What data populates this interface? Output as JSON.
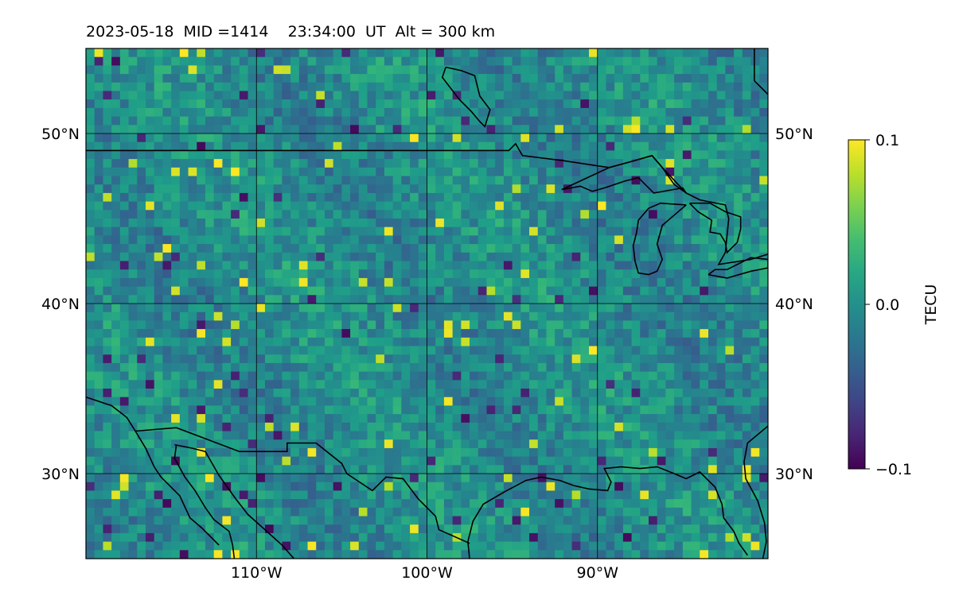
{
  "title": "2023-05-18  MID =1414    23:34:00  UT  Alt = 300 km",
  "map": {
    "projection": "equirectangular",
    "lon_range": [
      -120,
      -80
    ],
    "lat_range": [
      25,
      55
    ],
    "cell_size_deg": 0.5,
    "gridlines": true,
    "lon_ticks": [
      {
        "value": -110,
        "label": "110°W"
      },
      {
        "value": -100,
        "label": "100°W"
      },
      {
        "value": -90,
        "label": "90°W"
      }
    ],
    "lat_ticks": [
      {
        "value": 50,
        "label": "50°N"
      },
      {
        "value": 40,
        "label": "40°N"
      },
      {
        "value": 30,
        "label": "30°N"
      }
    ],
    "coastline_color": "#000000",
    "colormap": "viridis"
  },
  "colorbar": {
    "label": "TECU",
    "min": -0.1,
    "max": 0.1,
    "ticks": [
      {
        "value": 0.1,
        "label": "0.1"
      },
      {
        "value": 0.0,
        "label": "0.0"
      },
      {
        "value": -0.1,
        "label": "−0.1"
      }
    ]
  },
  "boundaries": [
    {
      "name": "us-canada-border",
      "points": [
        [
          -120,
          49
        ],
        [
          -95.2,
          49
        ],
        [
          -94.8,
          49.4
        ],
        [
          -94.4,
          48.7
        ],
        [
          -92,
          48.4
        ],
        [
          -90,
          48.1
        ],
        [
          -89.3,
          48.0
        ],
        [
          -88.2,
          48.3
        ],
        [
          -86.8,
          48.7
        ],
        [
          -86.2,
          48.0
        ],
        [
          -85.5,
          47.0
        ],
        [
          -84.8,
          46.5
        ],
        [
          -84,
          46.1
        ],
        [
          -82.5,
          45.8
        ],
        [
          -82.3,
          45.0
        ],
        [
          -82.5,
          43.0
        ],
        [
          -82.9,
          42.3
        ],
        [
          -81,
          42.6
        ],
        [
          -80,
          42.9
        ]
      ]
    },
    {
      "name": "us-mexico-border",
      "points": [
        [
          -117.1,
          32.5
        ],
        [
          -114.7,
          32.7
        ],
        [
          -111,
          31.3
        ],
        [
          -108.2,
          31.3
        ],
        [
          -108.2,
          31.8
        ],
        [
          -106.5,
          31.8
        ],
        [
          -105,
          30.6
        ],
        [
          -104.7,
          30
        ],
        [
          -103.2,
          29
        ],
        [
          -102.4,
          29.8
        ],
        [
          -101.4,
          29.7
        ],
        [
          -100.5,
          28.5
        ],
        [
          -99.5,
          27.5
        ],
        [
          -99.3,
          26.7
        ],
        [
          -97.5,
          25.9
        ]
      ]
    },
    {
      "name": "baja-pacific-coast",
      "points": [
        [
          -120,
          34.5
        ],
        [
          -118.5,
          34
        ],
        [
          -117.6,
          33.3
        ],
        [
          -117.1,
          32.5
        ],
        [
          -116.5,
          31.5
        ],
        [
          -116,
          30.4
        ],
        [
          -115.6,
          29.8
        ],
        [
          -114.5,
          28.7
        ],
        [
          -113.9,
          27.4
        ],
        [
          -113.2,
          26.8
        ],
        [
          -112.2,
          25.8
        ]
      ]
    },
    {
      "name": "baja-gulf-coast",
      "points": [
        [
          -114.7,
          31.7
        ],
        [
          -114.8,
          30.9
        ],
        [
          -114.2,
          29.8
        ],
        [
          -113.6,
          29.0
        ],
        [
          -113.0,
          28.0
        ],
        [
          -112.5,
          27.3
        ],
        [
          -111.6,
          26.6
        ],
        [
          -111.4,
          25.8
        ],
        [
          -111.3,
          25.0
        ]
      ]
    },
    {
      "name": "mainland-mexico-west-coast",
      "points": [
        [
          -114.8,
          31.7
        ],
        [
          -113.8,
          31.5
        ],
        [
          -113,
          31.3
        ],
        [
          -112.2,
          29.9
        ],
        [
          -111.2,
          28.5
        ],
        [
          -110.5,
          27.6
        ],
        [
          -109.5,
          26.7
        ],
        [
          -108.5,
          25.8
        ],
        [
          -107.8,
          25.0
        ]
      ]
    },
    {
      "name": "gulf-coast",
      "points": [
        [
          -97.5,
          25.0
        ],
        [
          -97.6,
          26.0
        ],
        [
          -97.3,
          27.2
        ],
        [
          -96.7,
          28.2
        ],
        [
          -95.5,
          28.9
        ],
        [
          -94.2,
          29.6
        ],
        [
          -93.3,
          29.8
        ],
        [
          -92.2,
          29.6
        ],
        [
          -91.4,
          29.3
        ],
        [
          -90.5,
          29.1
        ],
        [
          -89.4,
          29.0
        ],
        [
          -89.2,
          29.5
        ],
        [
          -89.6,
          30.3
        ],
        [
          -88.6,
          30.4
        ],
        [
          -87.5,
          30.3
        ],
        [
          -86.5,
          30.4
        ],
        [
          -85.5,
          30.0
        ],
        [
          -84.8,
          29.7
        ],
        [
          -84,
          30.1
        ],
        [
          -83.1,
          29.2
        ],
        [
          -82.7,
          28.2
        ],
        [
          -82.6,
          27.4
        ],
        [
          -82,
          26.6
        ],
        [
          -81.7,
          25.9
        ],
        [
          -81.2,
          25.2
        ]
      ]
    },
    {
      "name": "atlantic-coast",
      "points": [
        [
          -80,
          32.8
        ],
        [
          -81.2,
          31.8
        ],
        [
          -81.4,
          30.7
        ],
        [
          -81.3,
          29.7
        ],
        [
          -80.6,
          28.4
        ],
        [
          -80.2,
          27.1
        ],
        [
          -80.1,
          26.0
        ],
        [
          -80.3,
          25.0
        ]
      ]
    },
    {
      "name": "lake-superior",
      "points": [
        [
          -92.1,
          46.7
        ],
        [
          -91,
          46.9
        ],
        [
          -90.3,
          46.6
        ],
        [
          -89.6,
          46.8
        ],
        [
          -88.4,
          47.2
        ],
        [
          -87.6,
          47.4
        ],
        [
          -86.7,
          46.5
        ],
        [
          -85,
          46.8
        ],
        [
          -84.8,
          46.5
        ],
        [
          -86.2,
          48.0
        ],
        [
          -86.8,
          48.7
        ],
        [
          -88.2,
          48.3
        ],
        [
          -89.3,
          48.0
        ],
        [
          -92.1,
          46.7
        ]
      ]
    },
    {
      "name": "lake-michigan",
      "points": [
        [
          -84.8,
          45.8
        ],
        [
          -85.5,
          45.2
        ],
        [
          -86.2,
          44.6
        ],
        [
          -86.5,
          43.5
        ],
        [
          -86.2,
          42.6
        ],
        [
          -86.5,
          41.9
        ],
        [
          -87.0,
          41.7
        ],
        [
          -87.6,
          41.8
        ],
        [
          -87.8,
          42.5
        ],
        [
          -87.9,
          43.4
        ],
        [
          -87.7,
          44.2
        ],
        [
          -87.6,
          44.9
        ],
        [
          -87.0,
          45.6
        ],
        [
          -86.3,
          45.9
        ],
        [
          -84.8,
          45.8
        ]
      ]
    },
    {
      "name": "lake-huron",
      "points": [
        [
          -84.6,
          45.9
        ],
        [
          -83.4,
          45.9
        ],
        [
          -82.5,
          45.4
        ],
        [
          -81.6,
          45.1
        ],
        [
          -81.6,
          44.4
        ],
        [
          -81.8,
          43.6
        ],
        [
          -82.4,
          43.0
        ],
        [
          -82.5,
          43.6
        ],
        [
          -82.8,
          44.1
        ],
        [
          -83.4,
          44.2
        ],
        [
          -83.3,
          44.9
        ],
        [
          -84.1,
          45.4
        ],
        [
          -84.6,
          45.9
        ]
      ]
    },
    {
      "name": "lake-erie",
      "points": [
        [
          -83.5,
          41.7
        ],
        [
          -82.4,
          41.5
        ],
        [
          -81.0,
          41.9
        ],
        [
          -80.0,
          42.1
        ],
        [
          -80.0,
          42.6
        ],
        [
          -81.0,
          42.7
        ],
        [
          -82.4,
          42.0
        ],
        [
          -83.1,
          42.0
        ],
        [
          -83.5,
          41.7
        ]
      ]
    },
    {
      "name": "hudson-bay-coast",
      "points": [
        [
          -80.8,
          55
        ],
        [
          -80.8,
          53.1
        ],
        [
          -80.0,
          52.3
        ]
      ]
    },
    {
      "name": "lake-winnipeg",
      "points": [
        [
          -98.9,
          53.9
        ],
        [
          -98.0,
          53.7
        ],
        [
          -97.2,
          53.4
        ],
        [
          -96.9,
          52.2
        ],
        [
          -96.3,
          51.4
        ],
        [
          -96.6,
          50.4
        ],
        [
          -96.9,
          50.7
        ],
        [
          -97.4,
          51.3
        ],
        [
          -98.1,
          52.0
        ],
        [
          -99.1,
          53.3
        ],
        [
          -98.9,
          53.9
        ]
      ]
    }
  ]
}
